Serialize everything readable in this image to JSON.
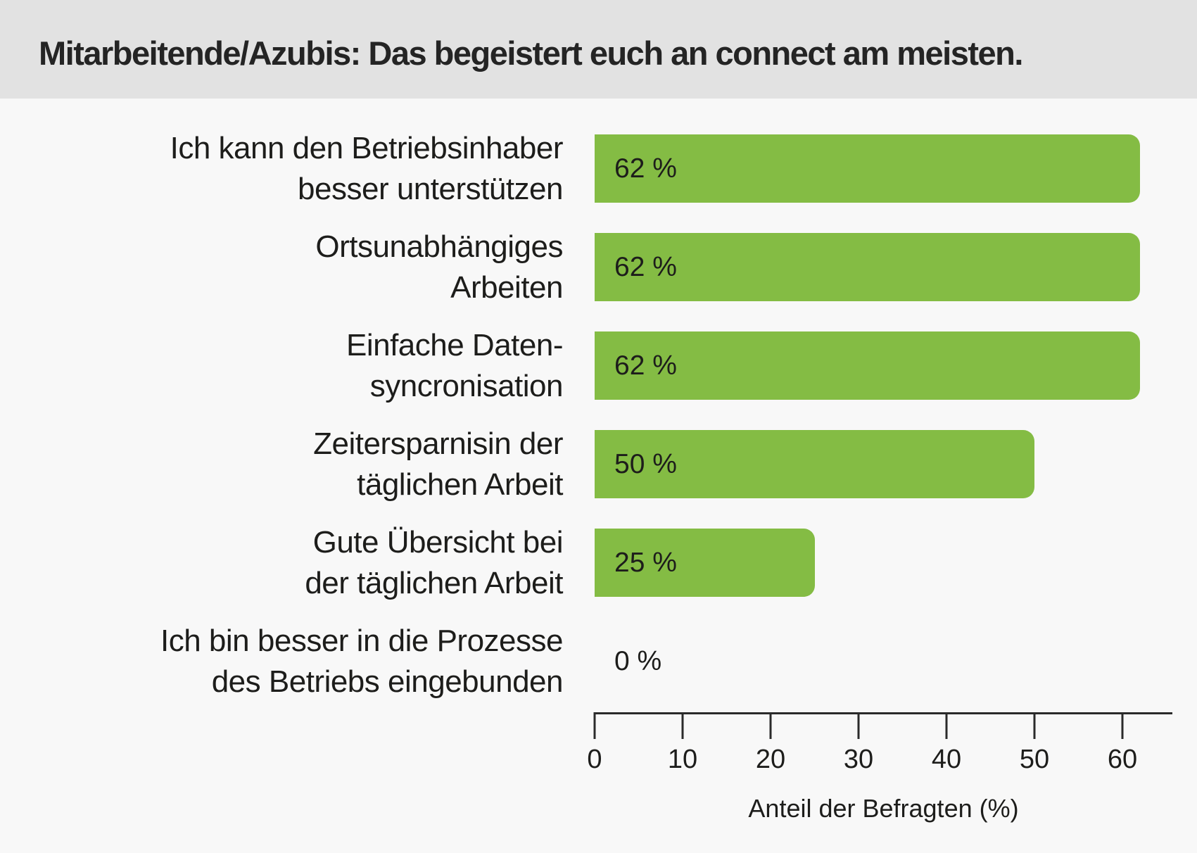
{
  "header": {
    "title": "Mitarbeitende/Azubis: Das begeistert euch an connect am meisten."
  },
  "colors": {
    "bar_green": "#84bc44",
    "header_background": "#e2e2e2",
    "body_background": "#f8f8f8",
    "text": "#1d1d1b",
    "axis": "#2b2b2b"
  },
  "chart_data": {
    "type": "bar",
    "orientation": "horizontal",
    "title": "Mitarbeitende/Azubis: Das begeistert euch an connect am meisten.",
    "categories": [
      "Ich kann den Betriebsinhaber\nbesser unterstützen",
      "Ortsunabhängiges\nArbeiten",
      "Einfache Daten-\nsyncronisation",
      "Zeitersparnisin der\ntäglichen Arbeit",
      "Gute Übersicht bei\nder täglichen Arbeit",
      "Ich bin besser in die Prozesse\ndes Betriebs eingebunden"
    ],
    "values": [
      62,
      62,
      62,
      50,
      25,
      0
    ],
    "value_labels": [
      "62 %",
      "62 %",
      "62 %",
      "50 %",
      "25 %",
      "0 %"
    ],
    "xlabel": "Anteil der Befragten (%)",
    "xticks": [
      0,
      10,
      20,
      30,
      40,
      50,
      60
    ],
    "xlim": [
      0,
      66
    ],
    "bar_color": "#84bc44",
    "grid": false,
    "legend": false,
    "value_label_position": "inside-left"
  }
}
